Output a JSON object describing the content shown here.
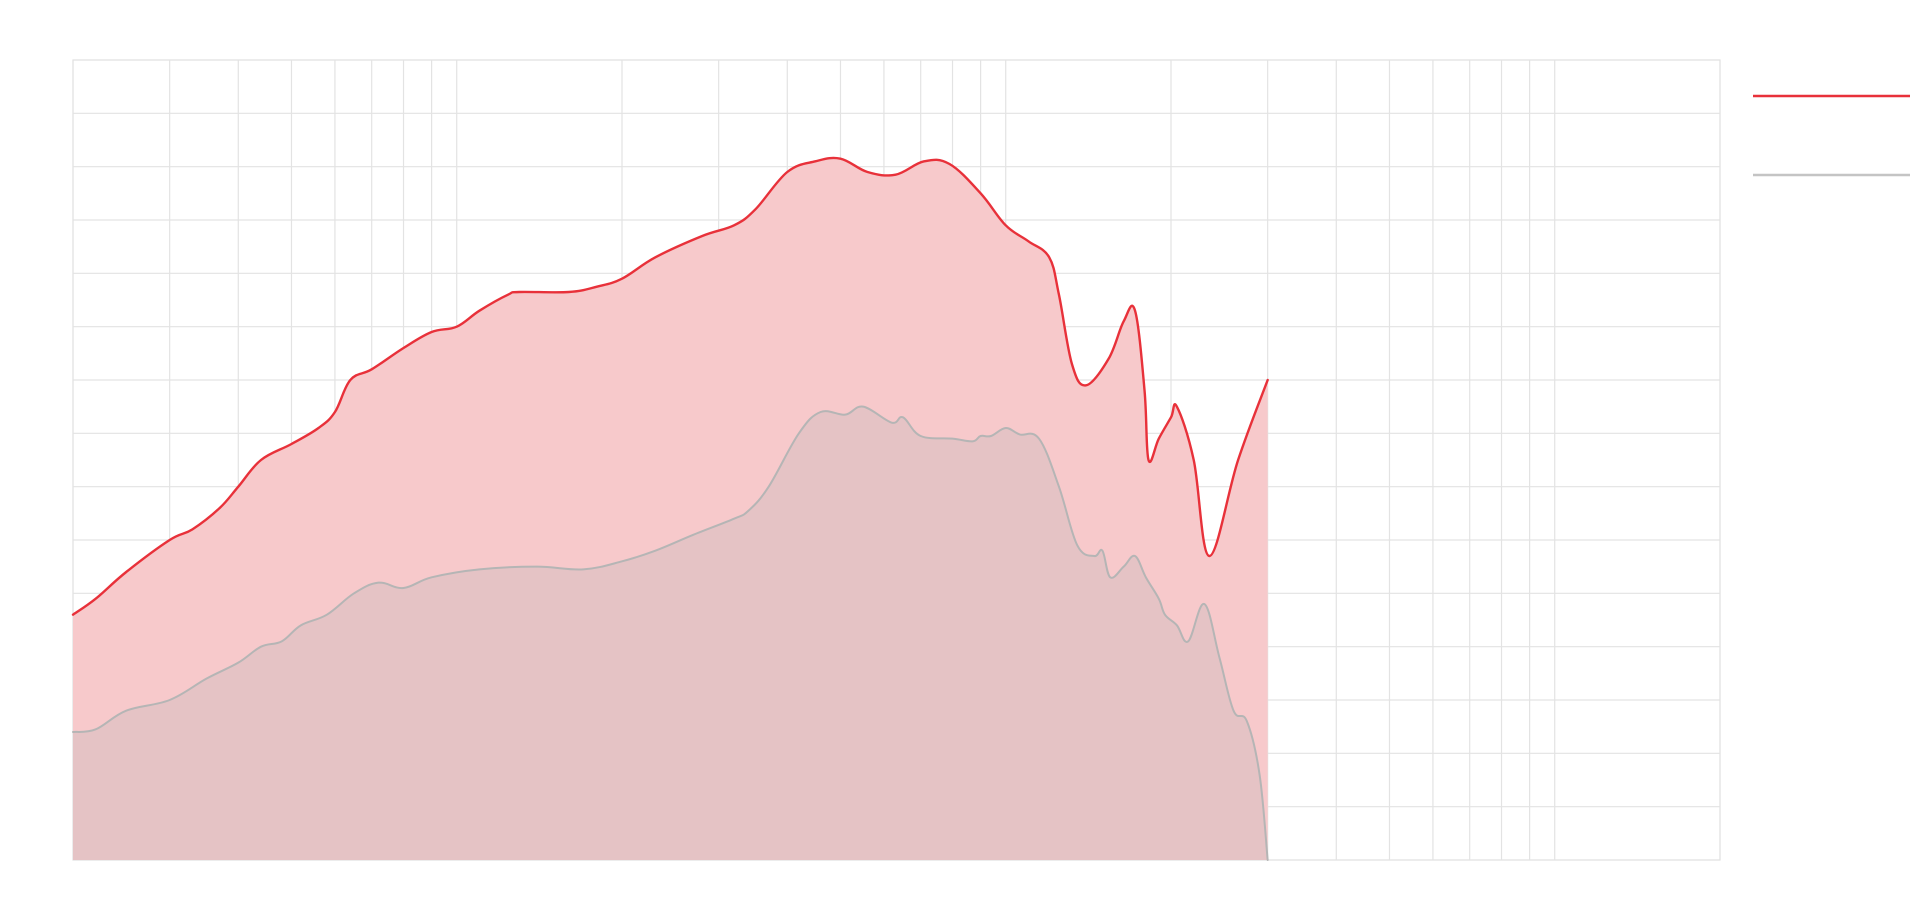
{
  "chart_data": {
    "type": "area",
    "title": "",
    "xlabel": "",
    "ylabel": "",
    "x_scale": "log",
    "xlim": [
      20,
      20000
    ],
    "ylim": [
      0,
      15
    ],
    "grid": true,
    "legend_position": "top-right",
    "colors": {
      "series_a_line": "#e8313a",
      "series_a_fill": "#f7c9cb",
      "series_b_line": "#b5b5b5",
      "series_b_fill": "#e2c2c4",
      "grid": "#e3e3e3",
      "legend_b": "#c4c4c4"
    },
    "series": [
      {
        "values": [
          [
            20,
            4.6
          ],
          [
            22,
            4.9
          ],
          [
            25,
            5.4
          ],
          [
            30,
            6.0
          ],
          [
            33,
            6.2
          ],
          [
            37,
            6.6
          ],
          [
            40,
            7.0
          ],
          [
            44,
            7.5
          ],
          [
            50,
            7.8
          ],
          [
            56,
            8.1
          ],
          [
            60,
            8.4
          ],
          [
            64,
            9.0
          ],
          [
            70,
            9.2
          ],
          [
            80,
            9.6
          ],
          [
            90,
            9.9
          ],
          [
            100,
            10.0
          ],
          [
            110,
            10.3
          ],
          [
            124,
            10.6
          ],
          [
            130,
            10.65
          ],
          [
            160,
            10.65
          ],
          [
            180,
            10.75
          ],
          [
            200,
            10.9
          ],
          [
            230,
            11.3
          ],
          [
            280,
            11.7
          ],
          [
            320,
            11.9
          ],
          [
            350,
            12.2
          ],
          [
            400,
            12.9
          ],
          [
            450,
            13.1
          ],
          [
            500,
            13.15
          ],
          [
            560,
            12.9
          ],
          [
            630,
            12.85
          ],
          [
            710,
            13.1
          ],
          [
            790,
            13.05
          ],
          [
            900,
            12.5
          ],
          [
            1000,
            11.9
          ],
          [
            1100,
            11.6
          ],
          [
            1200,
            11.3
          ],
          [
            1250,
            10.6
          ],
          [
            1320,
            9.3
          ],
          [
            1400,
            8.9
          ],
          [
            1540,
            9.4
          ],
          [
            1640,
            10.1
          ],
          [
            1720,
            10.3
          ],
          [
            1790,
            8.8
          ],
          [
            1820,
            7.5
          ],
          [
            1900,
            7.9
          ],
          [
            2000,
            8.3
          ],
          [
            2050,
            8.5
          ],
          [
            2200,
            7.5
          ],
          [
            2350,
            5.7
          ],
          [
            2650,
            7.5
          ],
          [
            3000,
            9.0
          ]
        ]
      },
      {
        "values": [
          [
            20,
            2.4
          ],
          [
            22,
            2.45
          ],
          [
            25,
            2.8
          ],
          [
            30,
            3.0
          ],
          [
            35,
            3.4
          ],
          [
            40,
            3.7
          ],
          [
            44,
            4.0
          ],
          [
            48,
            4.1
          ],
          [
            52,
            4.4
          ],
          [
            58,
            4.6
          ],
          [
            65,
            5.0
          ],
          [
            72,
            5.2
          ],
          [
            80,
            5.1
          ],
          [
            90,
            5.3
          ],
          [
            110,
            5.45
          ],
          [
            140,
            5.5
          ],
          [
            170,
            5.45
          ],
          [
            200,
            5.6
          ],
          [
            230,
            5.8
          ],
          [
            270,
            6.1
          ],
          [
            320,
            6.4
          ],
          [
            340,
            6.55
          ],
          [
            370,
            7.0
          ],
          [
            420,
            8.0
          ],
          [
            460,
            8.4
          ],
          [
            510,
            8.35
          ],
          [
            550,
            8.5
          ],
          [
            620,
            8.2
          ],
          [
            650,
            8.3
          ],
          [
            700,
            7.95
          ],
          [
            800,
            7.9
          ],
          [
            870,
            7.85
          ],
          [
            900,
            7.95
          ],
          [
            940,
            7.95
          ],
          [
            1000,
            8.1
          ],
          [
            1060,
            7.98
          ],
          [
            1150,
            7.9
          ],
          [
            1250,
            7.0
          ],
          [
            1350,
            5.9
          ],
          [
            1450,
            5.7
          ],
          [
            1500,
            5.8
          ],
          [
            1550,
            5.3
          ],
          [
            1640,
            5.5
          ],
          [
            1720,
            5.7
          ],
          [
            1800,
            5.3
          ],
          [
            1900,
            4.9
          ],
          [
            1950,
            4.6
          ],
          [
            2050,
            4.4
          ],
          [
            2150,
            4.1
          ],
          [
            2300,
            4.8
          ],
          [
            2450,
            3.8
          ],
          [
            2600,
            2.8
          ],
          [
            2750,
            2.6
          ],
          [
            2900,
            1.6
          ],
          [
            3000,
            0.0
          ]
        ]
      }
    ]
  }
}
